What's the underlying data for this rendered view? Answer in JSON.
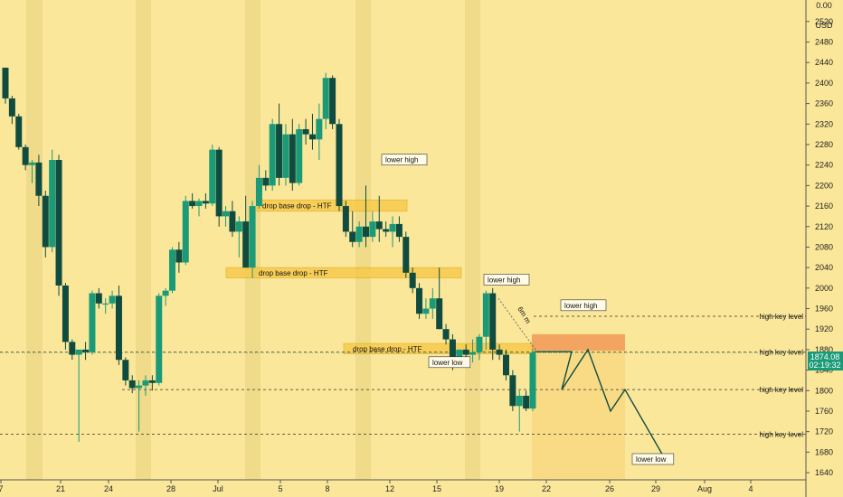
{
  "chart_data": {
    "type": "candlestick",
    "price_axis": {
      "unit_label": "USD",
      "top_label": "0.00",
      "ticks": [
        2520,
        2480,
        2440,
        2400,
        2360,
        2320,
        2280,
        2240,
        2200,
        2160,
        2120,
        2080,
        2040,
        2000,
        1960,
        1920,
        1880,
        1840,
        1800,
        1760,
        1720,
        1680,
        1640
      ],
      "range": [
        1626,
        2562
      ]
    },
    "time_axis": {
      "labels": [
        "7",
        "21",
        "24",
        "28",
        "Jul",
        "5",
        "8",
        "12",
        "15",
        "19",
        "22",
        "26",
        "29",
        "Aug",
        "4"
      ]
    },
    "current_price": {
      "value": "1874.08",
      "countdown": "02:19:32"
    },
    "candles": [
      [
        2430,
        2430,
        2360,
        2370
      ],
      [
        2370,
        2375,
        2320,
        2335
      ],
      [
        2335,
        2340,
        2270,
        2275
      ],
      [
        2275,
        2280,
        2230,
        2240
      ],
      [
        2240,
        2250,
        2205,
        2245
      ],
      [
        2245,
        2260,
        2160,
        2180
      ],
      [
        2180,
        2190,
        2060,
        2080
      ],
      [
        2080,
        2270,
        2070,
        2250
      ],
      [
        2250,
        2260,
        1985,
        2005
      ],
      [
        2005,
        2010,
        1880,
        1895
      ],
      [
        1895,
        1900,
        1860,
        1870
      ],
      [
        1870,
        1880,
        1700,
        1880
      ],
      [
        1880,
        1895,
        1860,
        1875
      ],
      [
        1875,
        1995,
        1870,
        1990
      ],
      [
        1990,
        2000,
        1960,
        1970
      ],
      [
        1970,
        1980,
        1950,
        1970
      ],
      [
        1970,
        1995,
        1960,
        1985
      ],
      [
        1985,
        2005,
        1850,
        1860
      ],
      [
        1860,
        1865,
        1810,
        1820
      ],
      [
        1820,
        1830,
        1795,
        1805
      ],
      [
        1805,
        1820,
        1720,
        1810
      ],
      [
        1810,
        1830,
        1790,
        1820
      ],
      [
        1820,
        1830,
        1800,
        1815
      ],
      [
        1815,
        1990,
        1810,
        1985
      ],
      [
        1985,
        2000,
        1965,
        1995
      ],
      [
        1995,
        2080,
        1990,
        2075
      ],
      [
        2075,
        2090,
        2030,
        2050
      ],
      [
        2050,
        2180,
        2045,
        2170
      ],
      [
        2170,
        2185,
        2155,
        2160
      ],
      [
        2160,
        2175,
        2140,
        2170
      ],
      [
        2170,
        2185,
        2155,
        2165
      ],
      [
        2165,
        2280,
        2160,
        2270
      ],
      [
        2270,
        2275,
        2120,
        2140
      ],
      [
        2140,
        2160,
        2120,
        2150
      ],
      [
        2150,
        2170,
        2100,
        2110
      ],
      [
        2110,
        2140,
        2060,
        2130
      ],
      [
        2130,
        2180,
        2040,
        2040
      ],
      [
        2040,
        2170,
        2020,
        2160
      ],
      [
        2160,
        2240,
        2155,
        2215
      ],
      [
        2215,
        2230,
        2190,
        2200
      ],
      [
        2200,
        2330,
        2190,
        2320
      ],
      [
        2320,
        2360,
        2200,
        2215
      ],
      [
        2215,
        2320,
        2200,
        2300
      ],
      [
        2300,
        2330,
        2190,
        2205
      ],
      [
        2205,
        2320,
        2200,
        2310
      ],
      [
        2310,
        2330,
        2280,
        2300
      ],
      [
        2300,
        2340,
        2270,
        2290
      ],
      [
        2290,
        2360,
        2250,
        2330
      ],
      [
        2330,
        2420,
        2310,
        2410
      ],
      [
        2410,
        2415,
        2310,
        2320
      ],
      [
        2320,
        2330,
        2150,
        2160
      ],
      [
        2160,
        2170,
        2100,
        2110
      ],
      [
        2110,
        2150,
        2080,
        2090
      ],
      [
        2090,
        2130,
        2080,
        2120
      ],
      [
        2120,
        2200,
        2080,
        2100
      ],
      [
        2100,
        2150,
        2090,
        2130
      ],
      [
        2130,
        2180,
        2090,
        2115
      ],
      [
        2115,
        2130,
        2100,
        2110
      ],
      [
        2110,
        2140,
        2080,
        2125
      ],
      [
        2125,
        2140,
        2090,
        2100
      ],
      [
        2100,
        2110,
        2020,
        2030
      ],
      [
        2030,
        2040,
        1990,
        2000
      ],
      [
        2000,
        2010,
        1940,
        1950
      ],
      [
        1950,
        1980,
        1940,
        1960
      ],
      [
        1960,
        2000,
        1940,
        1980
      ],
      [
        1980,
        2040,
        1920,
        1920
      ],
      [
        1920,
        1930,
        1890,
        1900
      ],
      [
        1900,
        1910,
        1840,
        1850
      ],
      [
        1850,
        1880,
        1850,
        1880
      ],
      [
        1880,
        1890,
        1860,
        1870
      ],
      [
        1870,
        1900,
        1855,
        1875
      ],
      [
        1875,
        1910,
        1860,
        1905
      ],
      [
        1905,
        1995,
        1880,
        1990
      ],
      [
        1990,
        2000,
        1860,
        1880
      ],
      [
        1880,
        1890,
        1860,
        1870
      ],
      [
        1870,
        1880,
        1820,
        1830
      ],
      [
        1830,
        1840,
        1760,
        1770
      ],
      [
        1770,
        1800,
        1720,
        1790
      ],
      [
        1790,
        1800,
        1760,
        1765
      ],
      [
        1765,
        1880,
        1760,
        1874.08
      ]
    ],
    "bars_to_axis_note": "OHLC per daily bar, left to right",
    "zones": [
      {
        "label": "drop base drop - HTF",
        "price_top": 2172,
        "price_bottom": 2150
      },
      {
        "label": "drop base drop - HTF",
        "price_top": 2040,
        "price_bottom": 2020
      },
      {
        "label": "drop base drop - HTF",
        "price_top": 1892,
        "price_bottom": 1872
      }
    ],
    "key_levels": [
      {
        "label": "high key level",
        "value": 1945
      },
      {
        "label": "high key level",
        "value": 1875
      },
      {
        "label": "high key level",
        "value": 1802
      },
      {
        "label": "high key level",
        "value": 1715
      }
    ],
    "projection": {
      "zone_top": 1910,
      "zone_bottom": 1878,
      "path": [
        1876,
        1876,
        1802,
        1876,
        1760,
        1802,
        1661
      ]
    },
    "annotations": [
      {
        "text": "lower high"
      },
      {
        "text": "lower high"
      },
      {
        "text": "lower high"
      },
      {
        "text": "lower low"
      },
      {
        "text": "lower low"
      },
      {
        "text": "6m m"
      }
    ],
    "colors": {
      "background": "#fbe79a",
      "shade": "#efdb89",
      "bull": "#1b9a78",
      "bear": "#0f4c3f",
      "zone": "#f6c842",
      "projection_zone": "#f3a460",
      "projection_fill": "#f9d983"
    }
  }
}
